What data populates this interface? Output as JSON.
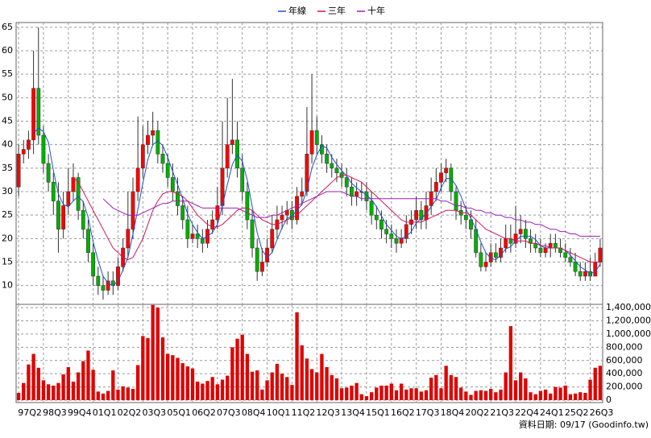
{
  "chart_data": {
    "type": "candlestick",
    "categories": [
      "97Q2",
      null,
      null,
      null,
      null,
      "98Q3",
      null,
      null,
      null,
      null,
      "99Q4",
      null,
      null,
      null,
      null,
      "01Q1",
      null,
      null,
      null,
      null,
      "02Q2",
      null,
      null,
      null,
      null,
      "03Q3",
      null,
      null,
      null,
      null,
      "05Q1",
      null,
      null,
      null,
      null,
      "06Q2",
      null,
      null,
      null,
      null,
      "07Q3",
      null,
      null,
      null,
      null,
      "08Q4",
      null,
      null,
      null,
      null,
      "10Q1",
      null,
      null,
      null,
      null,
      "11Q2",
      null,
      null,
      null,
      null,
      "12Q3",
      null,
      null,
      null,
      null,
      "13Q4",
      null,
      null,
      null,
      null,
      "15Q1",
      null,
      null,
      null,
      null,
      "16Q2",
      null,
      null,
      null,
      null,
      "17Q3",
      null,
      null,
      null,
      null,
      "18Q4",
      null,
      null,
      null,
      null,
      "20Q2",
      null,
      null,
      null,
      null,
      "21Q3",
      null,
      null,
      null,
      null,
      "22Q4",
      null,
      null,
      null,
      null,
      "24Q1",
      null,
      null,
      null,
      null,
      "25Q2",
      null,
      null,
      null,
      null,
      "26Q3",
      null,
      null
    ],
    "open": [
      31,
      38,
      39,
      41,
      52,
      42,
      36,
      32,
      28,
      22,
      27,
      30,
      33,
      26,
      22,
      17,
      12,
      10,
      9,
      11,
      10,
      14,
      18,
      22,
      30,
      35,
      40,
      42,
      43,
      38,
      36,
      33,
      30,
      27,
      24,
      20,
      21,
      20,
      19,
      22,
      24,
      27,
      35,
      40,
      41,
      35,
      30,
      24,
      18,
      13,
      15,
      18,
      22,
      24,
      25,
      26,
      24,
      29,
      30,
      38,
      43,
      40,
      38,
      36,
      35,
      34,
      33,
      31,
      29,
      30,
      30,
      28,
      25,
      24,
      22,
      21,
      20,
      19,
      20,
      23,
      24,
      26,
      24,
      27,
      30,
      32,
      34,
      35,
      30,
      26,
      25,
      24,
      22,
      17,
      14,
      15,
      17,
      16,
      18,
      20,
      19,
      21,
      22,
      20,
      19,
      18,
      17,
      18,
      19,
      18,
      17,
      16,
      15,
      13,
      12,
      13,
      12,
      15
    ],
    "high": [
      40,
      41,
      43,
      60,
      65,
      44,
      38,
      34,
      32,
      30,
      35,
      36,
      34,
      28,
      24,
      19,
      14,
      12,
      13,
      13,
      16,
      20,
      30,
      33,
      46,
      44,
      45,
      47,
      45,
      40,
      38,
      36,
      33,
      29,
      27,
      23,
      23,
      22,
      24,
      26,
      31,
      45,
      50,
      54,
      45,
      38,
      32,
      26,
      20,
      18,
      20,
      25,
      27,
      27,
      28,
      28,
      31,
      33,
      48,
      55,
      46,
      42,
      40,
      38,
      37,
      36,
      35,
      33,
      32,
      32,
      32,
      30,
      27,
      26,
      24,
      23,
      22,
      22,
      25,
      26,
      29,
      28,
      30,
      33,
      35,
      36,
      37,
      36,
      31,
      28,
      27,
      26,
      24,
      19,
      17,
      19,
      19,
      20,
      23,
      23,
      27,
      25,
      24,
      22,
      21,
      20,
      19,
      21,
      21,
      20,
      19,
      18,
      17,
      15,
      15,
      16,
      17,
      20
    ],
    "low": [
      29,
      36,
      37,
      38,
      40,
      34,
      30,
      25,
      17,
      20,
      25,
      28,
      24,
      20,
      15,
      10,
      8,
      7,
      8,
      8,
      9,
      13,
      16,
      20,
      28,
      33,
      38,
      40,
      36,
      34,
      31,
      28,
      25,
      22,
      18,
      19,
      18,
      17,
      18,
      21,
      22,
      25,
      33,
      38,
      33,
      28,
      22,
      16,
      11,
      12,
      14,
      17,
      20,
      22,
      23,
      22,
      23,
      27,
      29,
      36,
      38,
      36,
      34,
      33,
      32,
      31,
      29,
      27,
      27,
      28,
      26,
      23,
      22,
      20,
      19,
      18,
      17,
      18,
      19,
      21,
      22,
      22,
      22,
      25,
      28,
      30,
      32,
      28,
      24,
      23,
      22,
      20,
      16,
      13,
      13,
      14,
      15,
      15,
      17,
      17,
      18,
      19,
      18,
      17,
      17,
      16,
      16,
      16,
      17,
      16,
      15,
      14,
      12,
      11,
      11,
      11,
      12,
      14
    ],
    "close": [
      38,
      39,
      41,
      52,
      42,
      36,
      32,
      28,
      22,
      27,
      30,
      33,
      26,
      22,
      17,
      12,
      10,
      9,
      11,
      10,
      14,
      18,
      22,
      30,
      35,
      40,
      42,
      43,
      38,
      36,
      33,
      30,
      27,
      24,
      20,
      21,
      20,
      19,
      22,
      24,
      27,
      35,
      40,
      41,
      35,
      30,
      24,
      18,
      13,
      15,
      18,
      22,
      24,
      25,
      26,
      24,
      29,
      30,
      38,
      43,
      40,
      38,
      36,
      35,
      34,
      33,
      31,
      29,
      30,
      30,
      28,
      25,
      24,
      22,
      21,
      20,
      19,
      20,
      23,
      24,
      26,
      24,
      27,
      30,
      32,
      34,
      35,
      30,
      26,
      25,
      24,
      22,
      17,
      14,
      15,
      17,
      16,
      18,
      20,
      19,
      21,
      22,
      20,
      19,
      18,
      17,
      18,
      19,
      18,
      17,
      16,
      15,
      13,
      12,
      13,
      12,
      15,
      18
    ],
    "volume": [
      110000,
      260000,
      540000,
      700000,
      490000,
      300000,
      240000,
      220000,
      260000,
      390000,
      500000,
      280000,
      420000,
      590000,
      750000,
      460000,
      130000,
      100000,
      140000,
      450000,
      160000,
      210000,
      190000,
      170000,
      530000,
      970000,
      940000,
      1440000,
      1400000,
      950000,
      700000,
      680000,
      640000,
      560000,
      510000,
      480000,
      280000,
      250000,
      290000,
      350000,
      240000,
      310000,
      370000,
      800000,
      930000,
      990000,
      700000,
      430000,
      450000,
      160000,
      300000,
      420000,
      550000,
      400000,
      350000,
      230000,
      1330000,
      830000,
      630000,
      470000,
      420000,
      700000,
      500000,
      380000,
      330000,
      180000,
      190000,
      220000,
      260000,
      90000,
      60000,
      120000,
      190000,
      220000,
      220000,
      250000,
      150000,
      250000,
      160000,
      180000,
      180000,
      130000,
      150000,
      340000,
      380000,
      180000,
      520000,
      380000,
      350000,
      190000,
      130000,
      80000,
      140000,
      150000,
      140000,
      170000,
      120000,
      160000,
      420000,
      1120000,
      300000,
      420000,
      330000,
      120000,
      90000,
      140000,
      160000,
      100000,
      200000,
      190000,
      220000,
      90000,
      100000,
      120000,
      110000,
      310000,
      490000,
      520000
    ],
    "series": [
      {
        "name": "年線",
        "color": "#1f4fd1",
        "values": [
          null,
          null,
          null,
          42.5,
          43.5,
          42.8,
          40.5,
          34.5,
          29.5,
          27.3,
          26.8,
          28,
          29,
          27.8,
          24.5,
          19.3,
          15.3,
          12,
          10.5,
          10,
          11,
          13.3,
          16,
          21,
          26.3,
          31.8,
          36.8,
          40,
          40.8,
          39.8,
          37.3,
          34.3,
          31.5,
          28.5,
          25.3,
          23,
          21.3,
          20,
          20.5,
          21.3,
          23,
          27,
          31.5,
          35.8,
          37.8,
          36.5,
          32.5,
          26.8,
          21.3,
          17.5,
          16,
          17,
          19.8,
          22.3,
          24.3,
          24.8,
          26,
          27.3,
          30.3,
          35,
          37.8,
          39.8,
          39.3,
          37.3,
          35.8,
          34.5,
          33.3,
          31.8,
          30.8,
          30,
          29.3,
          28.3,
          26.8,
          24.8,
          23,
          21.8,
          20.5,
          20,
          20.5,
          21.5,
          23.3,
          24.3,
          25.3,
          26.8,
          28.3,
          30.8,
          32.8,
          32.8,
          31.3,
          29,
          26.3,
          24.3,
          22,
          19.3,
          17,
          15.8,
          15.5,
          16.5,
          17.8,
          18.3,
          19.5,
          20.5,
          20.5,
          20.5,
          19.8,
          18.5,
          18,
          18,
          18,
          18,
          17.5,
          16.5,
          15.3,
          14,
          13.3,
          12.5,
          13,
          14.5
        ]
      },
      {
        "name": "三年",
        "color": "#d4145a",
        "values": [
          null,
          null,
          null,
          null,
          null,
          null,
          null,
          null,
          null,
          null,
          null,
          33,
          32,
          30,
          28,
          26,
          24,
          22,
          20,
          18,
          17,
          16,
          15.5,
          16,
          18,
          20,
          23,
          26,
          28,
          29.5,
          30,
          30,
          29.5,
          29,
          28,
          26.5,
          25,
          24,
          23,
          22.5,
          22.5,
          23,
          24,
          25,
          26,
          26.5,
          26.5,
          26,
          25,
          24,
          23.5,
          23,
          23,
          23.5,
          24,
          24.5,
          25,
          26,
          27,
          28,
          29,
          30,
          31,
          32,
          33,
          33.5,
          33.5,
          33,
          32.5,
          32,
          31,
          30,
          29,
          28,
          27,
          26,
          25,
          24,
          23.5,
          23.5,
          23.5,
          23.5,
          24,
          24.5,
          25,
          25.5,
          26,
          26,
          26,
          25.5,
          25.5,
          25,
          24,
          23,
          22,
          21.5,
          21,
          20.5,
          20,
          20,
          19.5,
          19.5,
          19.5,
          19,
          19,
          18.5,
          18.5,
          18,
          18,
          18,
          17.5,
          17,
          16.5,
          16,
          15.5,
          15,
          15,
          15
        ]
      },
      {
        "name": "十年",
        "color": "#9b1fb5",
        "values": [
          null,
          null,
          null,
          null,
          null,
          null,
          null,
          null,
          null,
          null,
          null,
          null,
          null,
          null,
          null,
          null,
          null,
          28.5,
          27.5,
          26.5,
          26,
          25.5,
          25,
          25,
          25,
          25.5,
          26,
          26.5,
          27,
          27.5,
          27.5,
          28,
          28,
          28,
          28,
          27.5,
          27,
          26.5,
          26.5,
          26.5,
          26.5,
          26.5,
          26.5,
          26.5,
          26.5,
          26,
          25.5,
          25,
          24.5,
          24.5,
          24.5,
          25,
          25,
          25.5,
          26,
          26.5,
          27,
          27.5,
          28,
          28.5,
          29,
          29.5,
          30,
          30,
          30,
          30,
          29.5,
          29,
          29,
          28.5,
          28.5,
          28.5,
          28.5,
          28.5,
          28.5,
          28.5,
          28.5,
          28.5,
          28.5,
          28.5,
          28.5,
          28.5,
          28.5,
          28.5,
          28.5,
          28,
          28,
          27.5,
          27,
          27,
          26.5,
          26.5,
          26,
          26,
          25.5,
          25.5,
          25,
          25,
          24.5,
          24.5,
          24,
          24,
          23.5,
          23.5,
          23,
          23,
          22.5,
          22,
          22,
          21.5,
          21.5,
          21,
          21,
          20.5,
          20.5,
          20.5,
          20.5,
          20.5
        ]
      }
    ],
    "up_color": "#ff0000",
    "down_color": "#00b000",
    "volume_color": "#e00000",
    "ylim": [
      6,
      66
    ],
    "yticks": [
      10,
      15,
      20,
      25,
      30,
      35,
      40,
      45,
      50,
      55,
      60,
      65
    ],
    "y2lim": [
      0,
      1450000
    ],
    "y2ticks": [
      0,
      {
        "value": 200000,
        "label": "200,000"
      },
      {
        "value": 400000,
        "label": "400,000"
      },
      {
        "value": 600000,
        "label": "600,000"
      },
      {
        "value": 800000,
        "label": "800,000"
      },
      {
        "value": 1000000,
        "label": "1,000,000"
      },
      {
        "value": 1200000,
        "label": "1,200,000"
      },
      {
        "value": 1400000,
        "label": "1,400,000"
      }
    ],
    "grid": true,
    "source_note": "資料日期: 09/17  (Goodinfo.tw)"
  }
}
